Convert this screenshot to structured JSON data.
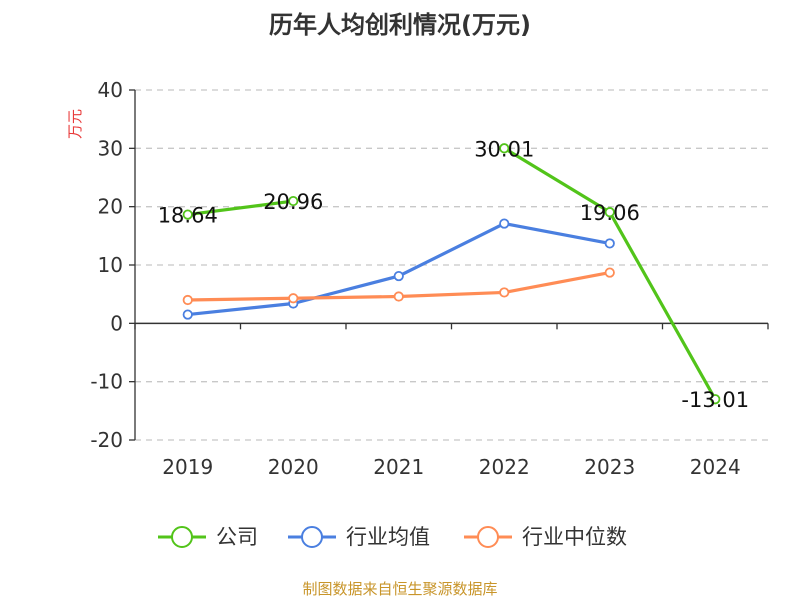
{
  "chart_data": {
    "type": "line",
    "title": "历年人均创利情况(万元)",
    "ylabel": "万元",
    "xlabel": "",
    "categories": [
      "2019",
      "2020",
      "2021",
      "2022",
      "2023",
      "2024"
    ],
    "ylim": [
      -20,
      40
    ],
    "yticks": [
      40,
      30,
      20,
      10,
      0,
      -10,
      -20
    ],
    "grid": true,
    "legend_position": "bottom",
    "series": [
      {
        "name": "公司",
        "color": "#52c41a",
        "values": [
          18.64,
          20.96,
          null,
          30.01,
          19.06,
          -13.01
        ],
        "labels": [
          "18.64",
          "20.96",
          "",
          "30.01",
          "19.06",
          "-13.01"
        ]
      },
      {
        "name": "行业均值",
        "color": "#4a7fe0",
        "values": [
          1.5,
          3.4,
          8.1,
          17.1,
          13.7,
          null
        ]
      },
      {
        "name": "行业中位数",
        "color": "#ff8c55",
        "values": [
          4.0,
          4.3,
          4.6,
          5.3,
          8.7,
          null
        ]
      }
    ]
  },
  "source": "制图数据来自恒生聚源数据库"
}
